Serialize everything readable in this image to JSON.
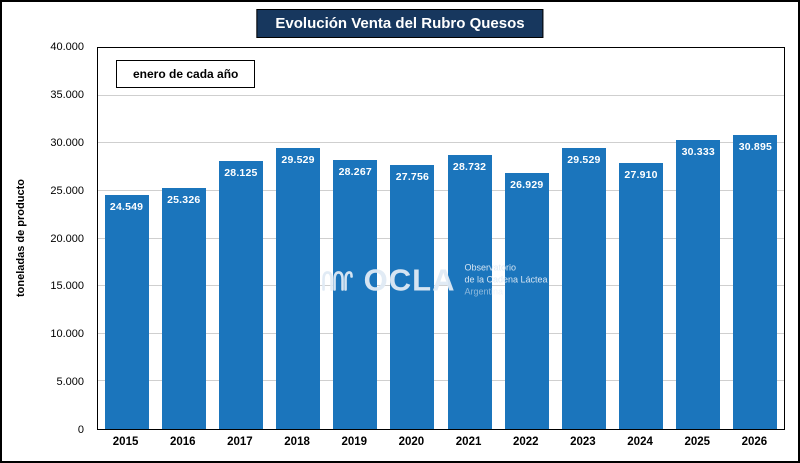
{
  "title": "Evolución Venta del Rubro Quesos",
  "legend_label": "enero de cada año",
  "watermark": {
    "logo": "OCLA",
    "line1": "Observatorio",
    "line2": "de la Cadena Láctea",
    "line3": "Argentina"
  },
  "chart_data": {
    "type": "bar",
    "title": "Evolución Venta del Rubro Quesos",
    "xlabel": "",
    "ylabel": "toneladas de producto",
    "categories": [
      "2015",
      "2016",
      "2017",
      "2018",
      "2019",
      "2020",
      "2021",
      "2022",
      "2023",
      "2024",
      "2025",
      "2026"
    ],
    "values": [
      24549,
      25326,
      28125,
      29529,
      28267,
      27756,
      28732,
      26929,
      29529,
      27910,
      30333,
      30895
    ],
    "value_labels": [
      "24.549",
      "25.326",
      "28.125",
      "29.529",
      "28.267",
      "27.756",
      "28.732",
      "26.929",
      "29.529",
      "27.910",
      "30.333",
      "30.895"
    ],
    "ylim": [
      0,
      40000
    ],
    "ytick_step": 5000,
    "ytick_labels": [
      "0",
      "5.000",
      "10.000",
      "15.000",
      "20.000",
      "25.000",
      "30.000",
      "35.000",
      "40.000"
    ],
    "bar_color": "#1b75bc",
    "grid": true,
    "gridline_color": "#cfcfcf",
    "title_bg_color": "#17375e",
    "legend_position": "top-left",
    "annotation": "enero de cada año"
  }
}
